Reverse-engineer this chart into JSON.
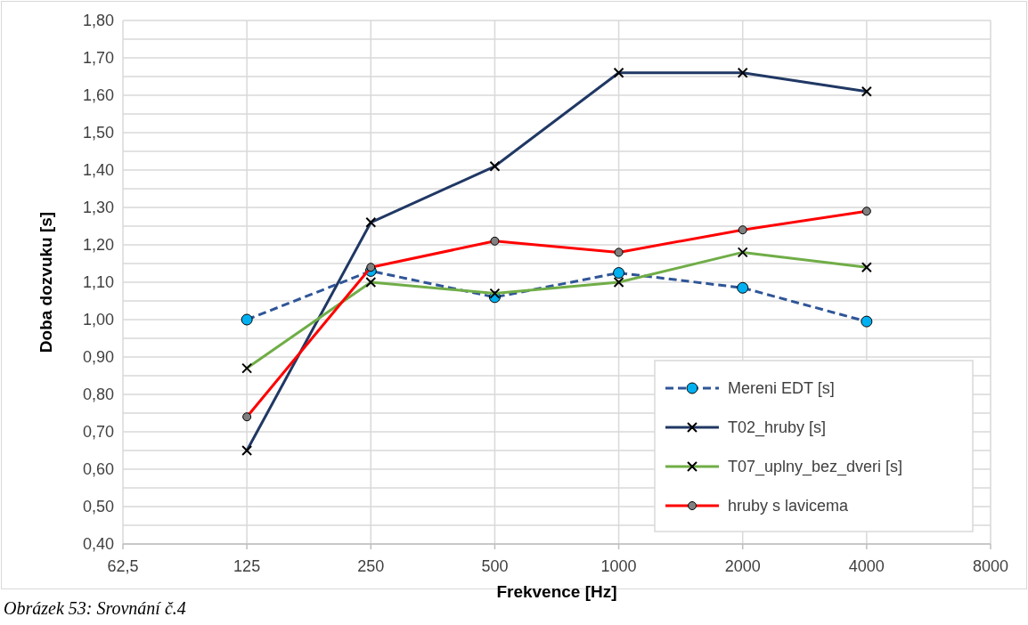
{
  "chart_data": {
    "type": "line",
    "xlabel": "Frekvence [Hz]",
    "ylabel": "Doba dozvuku [s]",
    "log": "x",
    "x": [
      125,
      250,
      500,
      1000,
      2000,
      4000
    ],
    "xlim": [
      62.5,
      8000
    ],
    "xticks": [
      {
        "value": 62.5,
        "label": "62,5"
      },
      125,
      250,
      500,
      1000,
      2000,
      4000,
      8000
    ],
    "ylim": [
      0.4,
      1.8
    ],
    "yticks": [
      {
        "value": 0.4,
        "label": "0,40"
      },
      {
        "value": 0.45,
        "label": null
      },
      {
        "value": 0.5,
        "label": "0,50"
      },
      {
        "value": 0.55,
        "label": null
      },
      {
        "value": 0.6,
        "label": "0,60"
      },
      {
        "value": 0.65,
        "label": null
      },
      {
        "value": 0.7,
        "label": "0,70"
      },
      {
        "value": 0.75,
        "label": null
      },
      {
        "value": 0.8,
        "label": "0,80"
      },
      {
        "value": 0.85,
        "label": null
      },
      {
        "value": 0.9,
        "label": "0,90"
      },
      {
        "value": 0.95,
        "label": null
      },
      {
        "value": 1.0,
        "label": "1,00"
      },
      {
        "value": 1.05,
        "label": null
      },
      {
        "value": 1.1,
        "label": "1,10"
      },
      {
        "value": 1.15,
        "label": null
      },
      {
        "value": 1.2,
        "label": "1,20"
      },
      {
        "value": 1.25,
        "label": null
      },
      {
        "value": 1.3,
        "label": "1,30"
      },
      {
        "value": 1.35,
        "label": null
      },
      {
        "value": 1.4,
        "label": "1,40"
      },
      {
        "value": 1.45,
        "label": null
      },
      {
        "value": 1.5,
        "label": "1,50"
      },
      {
        "value": 1.55,
        "label": null
      },
      {
        "value": 1.6,
        "label": "1,60"
      },
      {
        "value": 1.65,
        "label": null
      },
      {
        "value": 1.7,
        "label": "1,70"
      },
      {
        "value": 1.75,
        "label": null
      },
      {
        "value": 1.8,
        "label": "1,80"
      }
    ],
    "grid": true,
    "legend": "bottom right",
    "annotations": [
      "Obrázek 53: Srovnání č.4"
    ],
    "series": [
      {
        "name": "Mereni EDT [s]",
        "color": "#2f5597",
        "line_style": "dashed",
        "marker": "circle",
        "values": [
          1.0,
          1.13,
          1.06,
          1.125,
          1.085,
          0.995
        ]
      },
      {
        "name": "T02_hruby [s]",
        "color": "#203864",
        "line_style": "solid",
        "marker": "cross",
        "values": [
          0.65,
          1.26,
          1.41,
          1.66,
          1.66,
          1.61
        ]
      },
      {
        "name": "T07_uplny_bez_dveri [s]",
        "color": "#70ad47",
        "line_style": "solid",
        "marker": "cross",
        "values": [
          0.87,
          1.1,
          1.07,
          1.1,
          1.18,
          1.14
        ]
      },
      {
        "name": "hruby s lavicema",
        "color": "#ff0000",
        "line_style": "solid",
        "marker": "circle",
        "values": [
          0.74,
          1.14,
          1.21,
          1.18,
          1.24,
          1.29
        ]
      }
    ]
  }
}
